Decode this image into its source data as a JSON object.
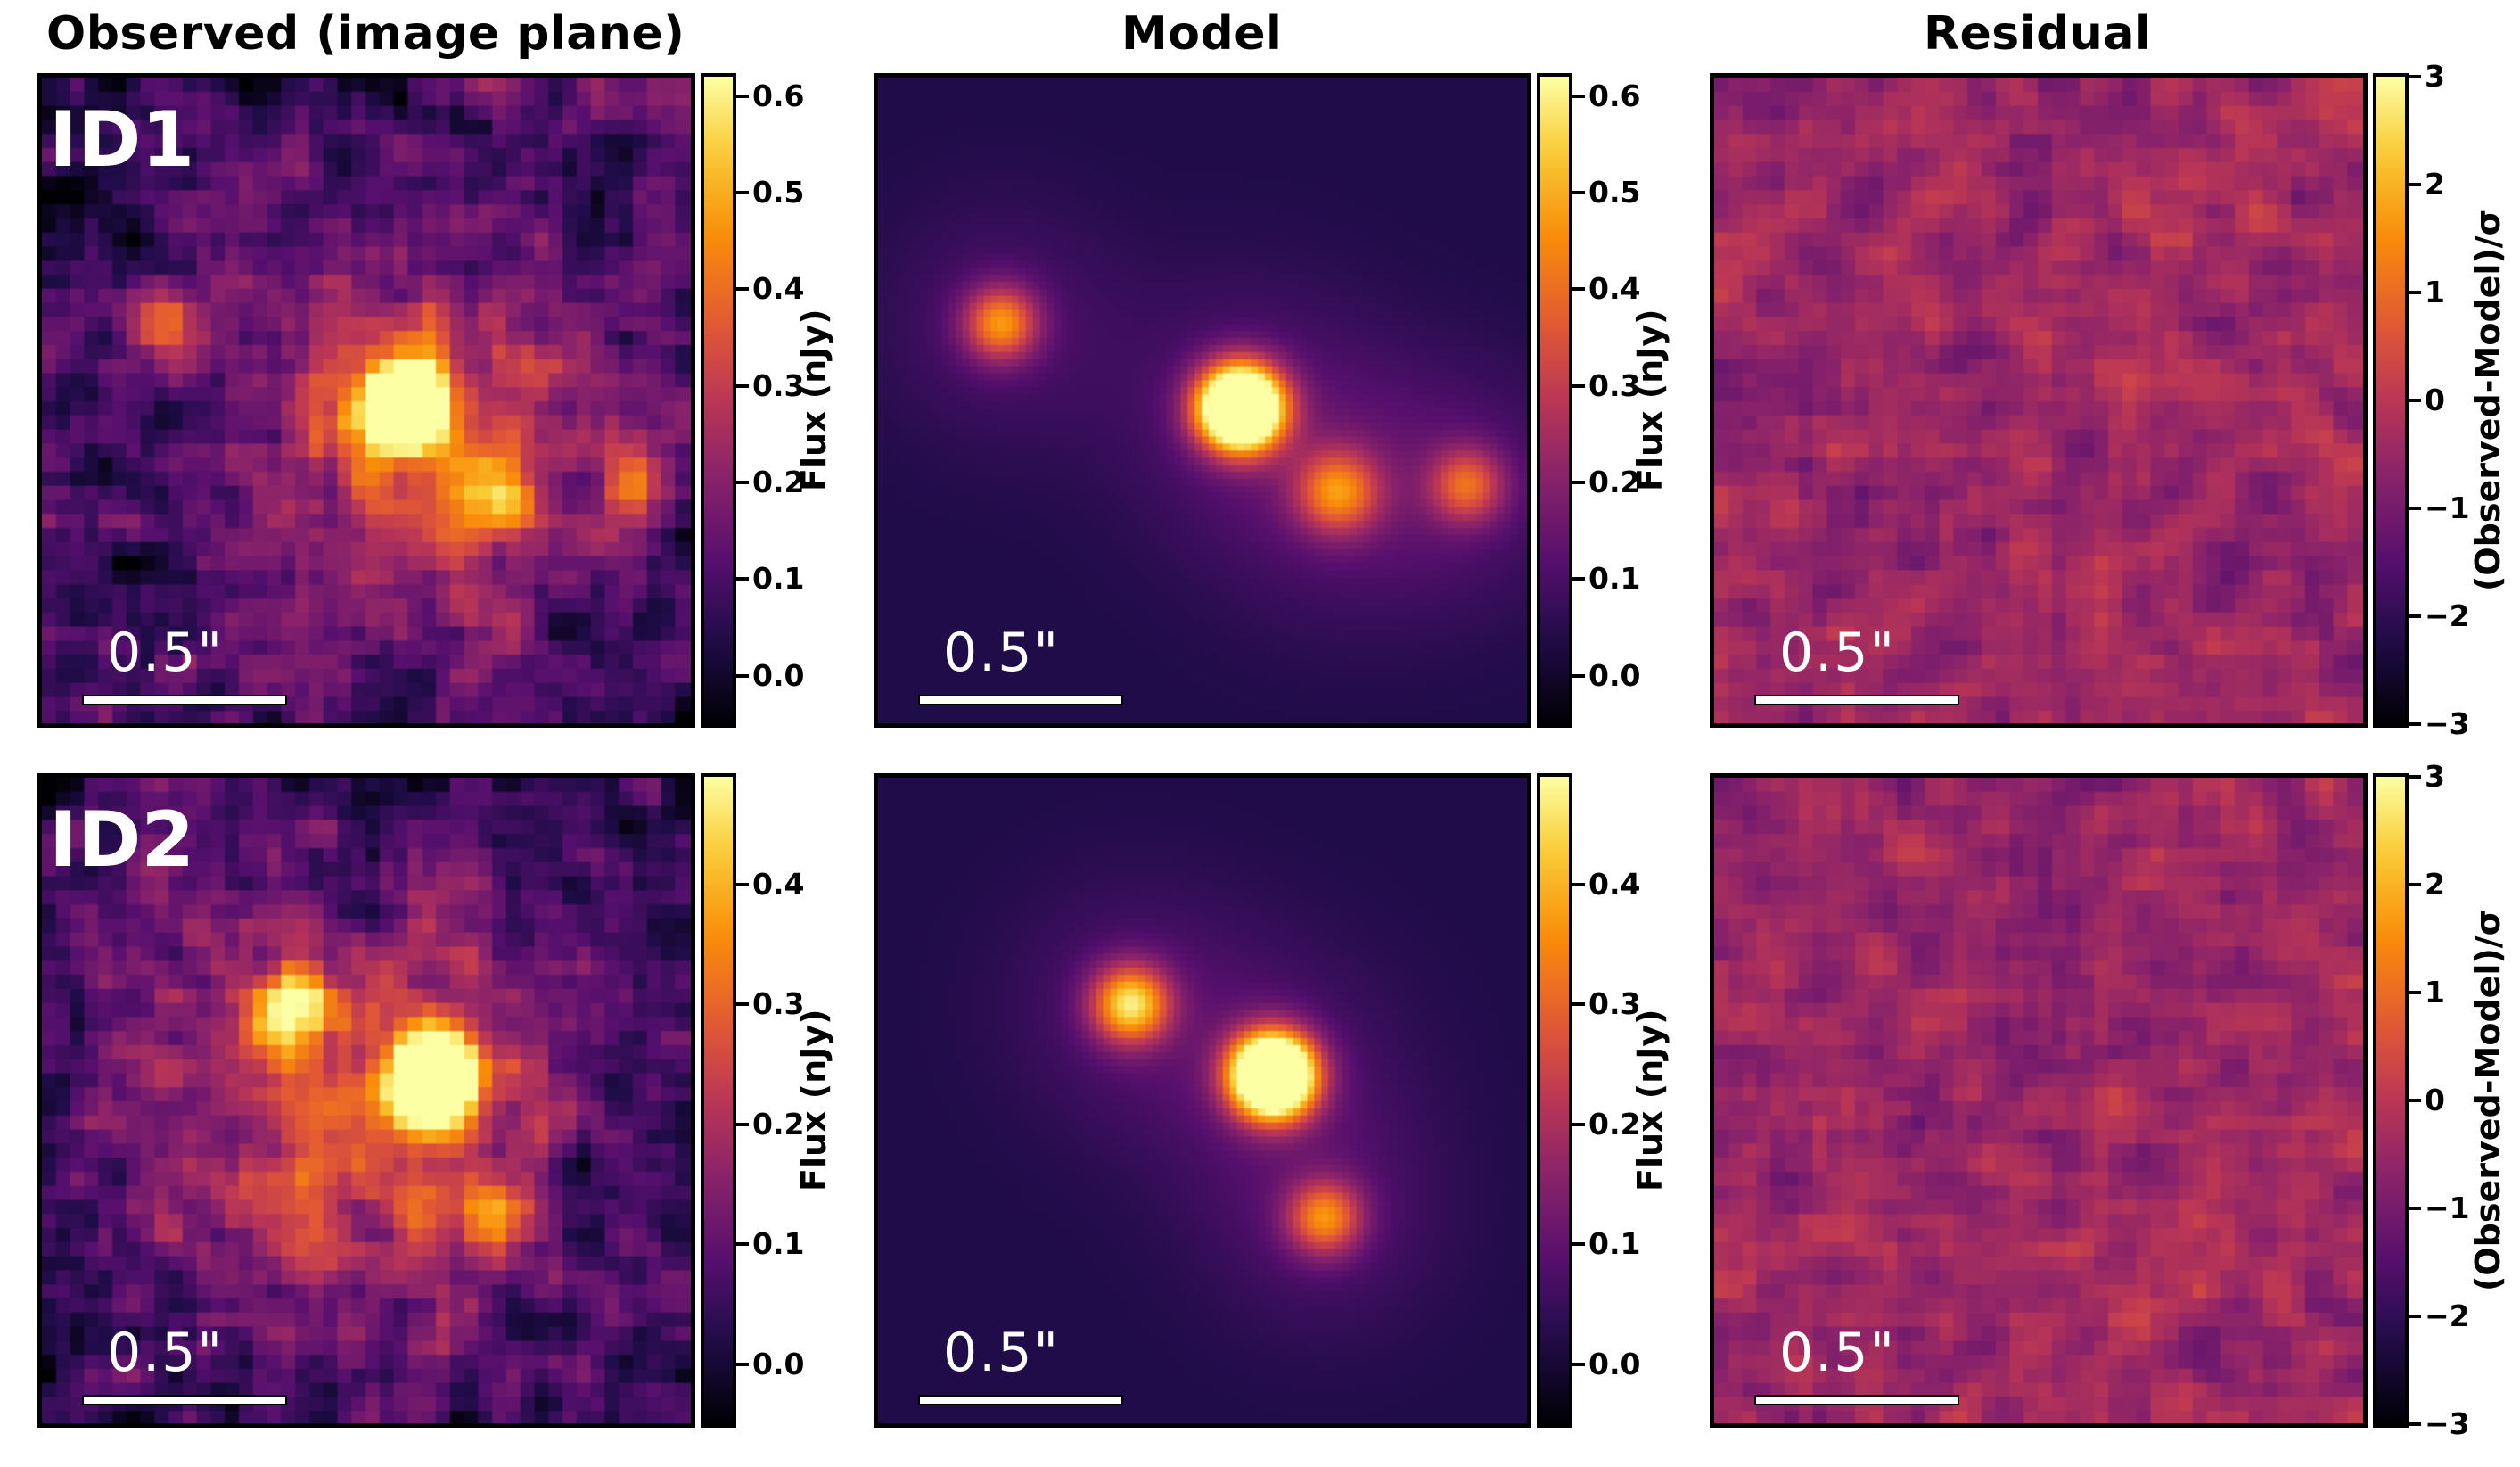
{
  "columns": [
    "Observed (image plane)",
    "Model",
    "Residual"
  ],
  "rows": [
    {
      "label": "ID1",
      "scalebar": "0.5\"",
      "flux_colorbar": {
        "label": "Flux (nJy)",
        "min": -0.05,
        "max": 0.62,
        "ticks": [
          "0.0",
          "0.1",
          "0.2",
          "0.3",
          "0.4",
          "0.5",
          "0.6"
        ],
        "tick_values": [
          0.0,
          0.1,
          0.2,
          0.3,
          0.4,
          0.5,
          0.6
        ]
      },
      "residual_colorbar": {
        "label": "(Observed-Model)/σ",
        "min": -3,
        "max": 3,
        "ticks": [
          "−3",
          "−2",
          "−1",
          "0",
          "1",
          "2",
          "3"
        ],
        "tick_values": [
          -3,
          -2,
          -1,
          0,
          1,
          2,
          3
        ]
      }
    },
    {
      "label": "ID2",
      "scalebar": "0.5\"",
      "flux_colorbar": {
        "label": "Flux (nJy)",
        "min": -0.05,
        "max": 0.49,
        "ticks": [
          "0.0",
          "0.1",
          "0.2",
          "0.3",
          "0.4"
        ],
        "tick_values": [
          0.0,
          0.1,
          0.2,
          0.3,
          0.4
        ]
      },
      "residual_colorbar": {
        "label": "(Observed-Model)/σ",
        "min": -3,
        "max": 3,
        "ticks": [
          "−3",
          "−2",
          "−1",
          "0",
          "1",
          "2",
          "3"
        ],
        "tick_values": [
          -3,
          -2,
          -1,
          0,
          1,
          2,
          3
        ]
      }
    }
  ],
  "colormap": "inferno"
}
